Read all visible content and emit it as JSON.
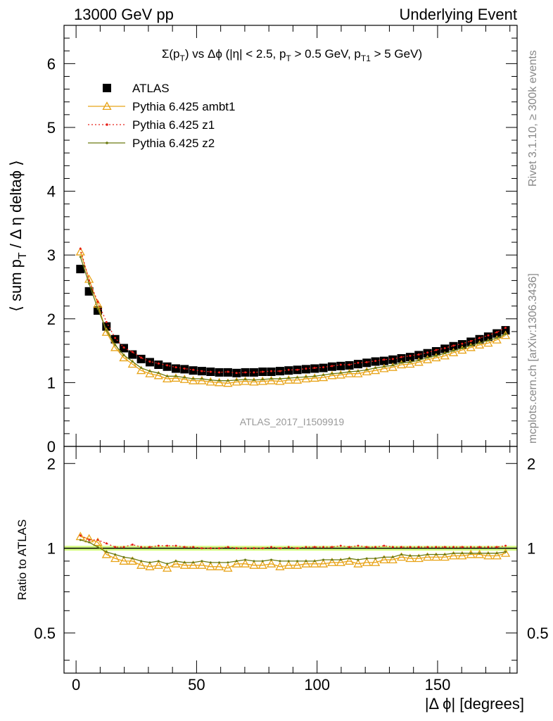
{
  "header": {
    "left": "13000 GeV pp",
    "right": "Underlying Event"
  },
  "plot": {
    "title_main": "Σ(p",
    "title_sub": "T",
    "title_rest": ") vs Δϕ (|η| < 2.5, p",
    "title_sub2": "T",
    "title_rest2": " > 0.5 GeV, p",
    "title_sub3": "T1",
    "title_rest3": " > 5 GeV)",
    "watermark": "ATLAS_2017_I1509919"
  },
  "side_labels": {
    "rivet": "Rivet 3.1.10, ≥ 300k events",
    "mcplots": "mcplots.cern.ch [arXiv:1306.3436]"
  },
  "colors": {
    "atlas": "#000000",
    "ambt1": "#e8a317",
    "z1": "#e8201a",
    "z2": "#6b7a12",
    "band": "#ccff66"
  },
  "chart_data": [
    {
      "type": "line",
      "title": "Σ(pT) vs Δϕ (|η| < 2.5, pT > 0.5 GeV, pT1 > 5 GeV)",
      "ylabel": "⟨ sum pT / Δ η deltaϕ ⟩",
      "xlim": [
        -5,
        183
      ],
      "ylim": [
        0,
        6.6
      ],
      "x_ticks": [
        0,
        50,
        100,
        150
      ],
      "y_ticks": [
        1,
        2,
        3,
        4,
        5,
        6
      ],
      "legend_position": "top-left",
      "x": [
        1.8,
        5.4,
        9,
        12.6,
        16.2,
        19.8,
        23.4,
        27,
        30.6,
        34.2,
        37.8,
        41.4,
        45,
        48.6,
        52.2,
        55.8,
        59.4,
        63,
        66.6,
        70.2,
        73.8,
        77.4,
        81,
        84.6,
        88.2,
        91.8,
        95.4,
        99,
        102.6,
        106.2,
        109.8,
        113.4,
        117,
        120.6,
        124.2,
        127.8,
        131.4,
        135,
        138.6,
        142.2,
        145.8,
        149.4,
        153,
        156.6,
        160.2,
        163.8,
        167.4,
        171,
        174.6,
        178.2
      ],
      "series": [
        {
          "name": "ATLAS",
          "values": [
            2.78,
            2.43,
            2.13,
            1.88,
            1.68,
            1.54,
            1.44,
            1.37,
            1.32,
            1.28,
            1.25,
            1.22,
            1.21,
            1.19,
            1.18,
            1.17,
            1.16,
            1.16,
            1.15,
            1.16,
            1.16,
            1.17,
            1.17,
            1.18,
            1.19,
            1.2,
            1.21,
            1.22,
            1.23,
            1.25,
            1.26,
            1.27,
            1.29,
            1.31,
            1.33,
            1.34,
            1.36,
            1.38,
            1.4,
            1.43,
            1.46,
            1.49,
            1.53,
            1.57,
            1.6,
            1.64,
            1.68,
            1.72,
            1.77,
            1.82
          ]
        },
        {
          "name": "Pythia 6.425 ambt1",
          "values": [
            3.05,
            2.62,
            2.23,
            1.79,
            1.55,
            1.39,
            1.29,
            1.19,
            1.14,
            1.11,
            1.06,
            1.07,
            1.05,
            1.03,
            1.03,
            1.01,
            1,
            0.99,
            1.01,
            1.02,
            1.01,
            1.02,
            1.03,
            1.02,
            1.04,
            1.04,
            1.06,
            1.07,
            1.08,
            1.11,
            1.12,
            1.14,
            1.14,
            1.17,
            1.19,
            1.22,
            1.24,
            1.28,
            1.29,
            1.32,
            1.36,
            1.39,
            1.42,
            1.47,
            1.51,
            1.55,
            1.59,
            1.62,
            1.67,
            1.74
          ]
        },
        {
          "name": "Pythia 6.425 z1",
          "values": [
            3.1,
            2.6,
            2.27,
            1.95,
            1.7,
            1.55,
            1.48,
            1.39,
            1.33,
            1.3,
            1.27,
            1.24,
            1.22,
            1.2,
            1.18,
            1.17,
            1.16,
            1.17,
            1.15,
            1.16,
            1.16,
            1.17,
            1.18,
            1.18,
            1.2,
            1.2,
            1.22,
            1.23,
            1.24,
            1.26,
            1.28,
            1.28,
            1.31,
            1.32,
            1.34,
            1.36,
            1.37,
            1.4,
            1.42,
            1.44,
            1.47,
            1.51,
            1.54,
            1.58,
            1.61,
            1.65,
            1.7,
            1.74,
            1.79,
            1.86
          ]
        },
        {
          "name": "Pythia 6.425 z2",
          "values": [
            2.97,
            2.55,
            2.16,
            1.82,
            1.59,
            1.43,
            1.33,
            1.23,
            1.18,
            1.15,
            1.1,
            1.1,
            1.08,
            1.06,
            1.06,
            1.04,
            1.03,
            1.03,
            1.04,
            1.05,
            1.04,
            1.05,
            1.06,
            1.06,
            1.07,
            1.08,
            1.09,
            1.1,
            1.12,
            1.14,
            1.15,
            1.17,
            1.18,
            1.2,
            1.23,
            1.25,
            1.27,
            1.31,
            1.32,
            1.35,
            1.39,
            1.42,
            1.46,
            1.5,
            1.54,
            1.58,
            1.62,
            1.66,
            1.7,
            1.76
          ]
        }
      ]
    },
    {
      "type": "line",
      "ylabel": "Ratio to ATLAS",
      "xlabel": "|Δ ϕ| [degrees]",
      "xlim": [
        -5,
        183
      ],
      "ylim": [
        0.36,
        2.3
      ],
      "y_scale": "log",
      "x_ticks": [
        0,
        50,
        100,
        150
      ],
      "y_ticks": [
        0.5,
        1,
        2
      ],
      "x": [
        1.8,
        5.4,
        9,
        12.6,
        16.2,
        19.8,
        23.4,
        27,
        30.6,
        34.2,
        37.8,
        41.4,
        45,
        48.6,
        52.2,
        55.8,
        59.4,
        63,
        66.6,
        70.2,
        73.8,
        77.4,
        81,
        84.6,
        88.2,
        91.8,
        95.4,
        99,
        102.6,
        106.2,
        109.8,
        113.4,
        117,
        120.6,
        124.2,
        127.8,
        131.4,
        135,
        138.6,
        142.2,
        145.8,
        149.4,
        153,
        156.6,
        160.2,
        163.8,
        167.4,
        171,
        174.6,
        178.2
      ],
      "series": [
        {
          "name": "Pythia 6.425 ambt1",
          "values": [
            1.1,
            1.08,
            1.05,
            0.95,
            0.92,
            0.9,
            0.9,
            0.87,
            0.86,
            0.87,
            0.85,
            0.88,
            0.87,
            0.87,
            0.87,
            0.86,
            0.86,
            0.85,
            0.88,
            0.88,
            0.87,
            0.87,
            0.88,
            0.86,
            0.87,
            0.87,
            0.88,
            0.88,
            0.88,
            0.89,
            0.89,
            0.9,
            0.88,
            0.89,
            0.89,
            0.91,
            0.91,
            0.93,
            0.92,
            0.92,
            0.93,
            0.93,
            0.93,
            0.94,
            0.94,
            0.95,
            0.95,
            0.94,
            0.94,
            0.96
          ]
        },
        {
          "name": "Pythia 6.425 z1",
          "values": [
            1.11,
            1.07,
            1.07,
            1.04,
            1.01,
            1.01,
            1.03,
            1.01,
            1.01,
            1.02,
            1.02,
            1.02,
            1.01,
            1.01,
            1,
            1,
            1,
            1.01,
            1,
            1,
            1,
            1,
            1.01,
            1,
            1.01,
            1,
            1.01,
            1.01,
            1.01,
            1.01,
            1.02,
            1.01,
            1.02,
            1.01,
            1.01,
            1.02,
            1.01,
            1.01,
            1.01,
            1.01,
            1.01,
            1.01,
            1.01,
            1.01,
            1.01,
            1.01,
            1.01,
            1.01,
            1.01,
            1.02
          ]
        },
        {
          "name": "Pythia 6.425 z2",
          "values": [
            1.07,
            1.05,
            1.01,
            0.97,
            0.95,
            0.93,
            0.92,
            0.9,
            0.89,
            0.9,
            0.88,
            0.9,
            0.89,
            0.89,
            0.9,
            0.89,
            0.89,
            0.89,
            0.9,
            0.91,
            0.9,
            0.9,
            0.91,
            0.9,
            0.9,
            0.9,
            0.9,
            0.9,
            0.91,
            0.91,
            0.91,
            0.92,
            0.91,
            0.92,
            0.92,
            0.93,
            0.93,
            0.95,
            0.94,
            0.94,
            0.95,
            0.95,
            0.95,
            0.96,
            0.96,
            0.96,
            0.96,
            0.96,
            0.96,
            0.97
          ]
        }
      ]
    }
  ]
}
